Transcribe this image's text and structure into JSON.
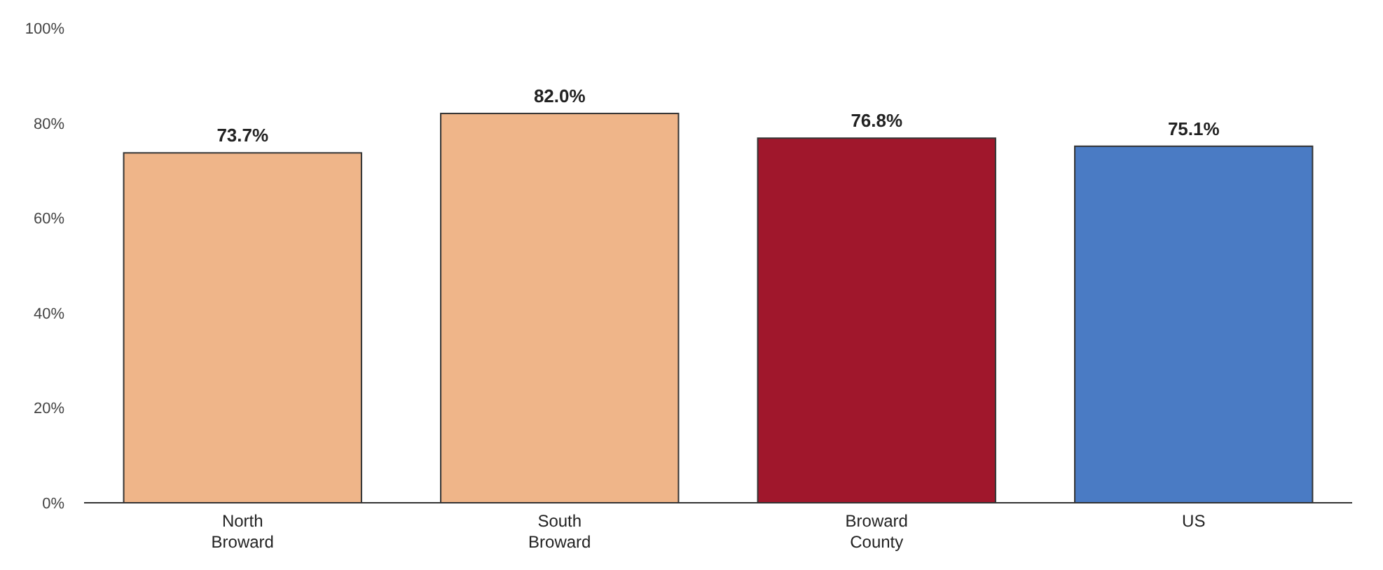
{
  "chart_data": {
    "type": "bar",
    "categories": [
      "North\nBroward",
      "South\nBroward",
      "Broward\nCounty",
      "US"
    ],
    "values": [
      73.7,
      82.0,
      76.8,
      75.1
    ],
    "colors": [
      "#efb589",
      "#efb589",
      "#a0172c",
      "#4a7bc4"
    ],
    "value_labels": [
      "73.7%",
      "82.0%",
      "76.8%",
      "75.1%"
    ],
    "ylim": [
      0,
      100
    ],
    "yticks": [
      {
        "value": 0,
        "label": "0%"
      },
      {
        "value": 20,
        "label": "20%"
      },
      {
        "value": 40,
        "label": "40%"
      },
      {
        "value": 60,
        "label": "60%"
      },
      {
        "value": 80,
        "label": "80%"
      },
      {
        "value": 100,
        "label": "100%"
      }
    ],
    "grid": false
  }
}
